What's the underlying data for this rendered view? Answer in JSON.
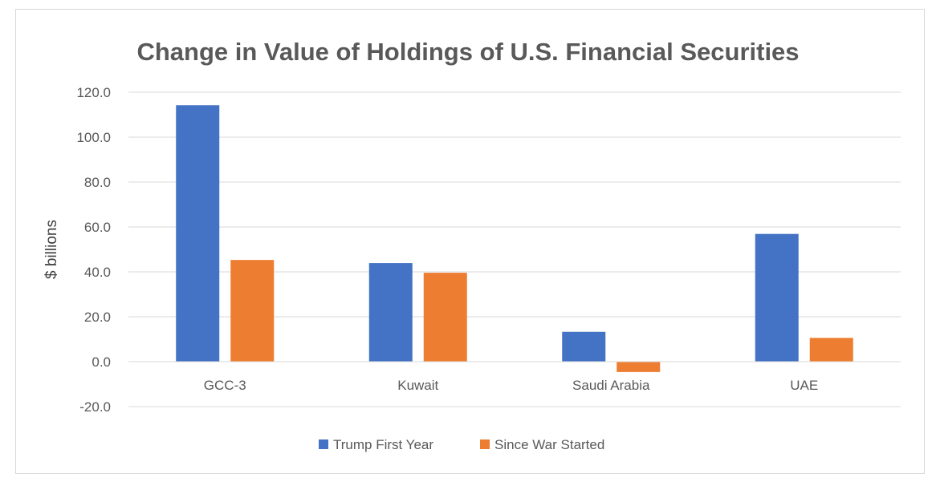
{
  "chart_data": {
    "type": "bar",
    "title": "Change in Value of Holdings of U.S. Financial Securities",
    "xlabel": "",
    "ylabel": "$ billions",
    "categories": [
      "GCC-3",
      "Kuwait",
      "Saudi Arabia",
      "UAE"
    ],
    "series": [
      {
        "name": "Trump First Year",
        "values": [
          114.2,
          43.9,
          13.3,
          56.9
        ],
        "color": "#4472c4"
      },
      {
        "name": "Since War Started",
        "values": [
          45.3,
          39.6,
          -4.6,
          10.6
        ],
        "color": "#ed7d31"
      }
    ],
    "ylim": [
      -20,
      120
    ],
    "yticks": [
      "120.0",
      "100.0",
      "80.0",
      "60.0",
      "40.0",
      "20.0",
      "0.0",
      "-20.0"
    ],
    "grid": true,
    "legend_position": "bottom"
  }
}
